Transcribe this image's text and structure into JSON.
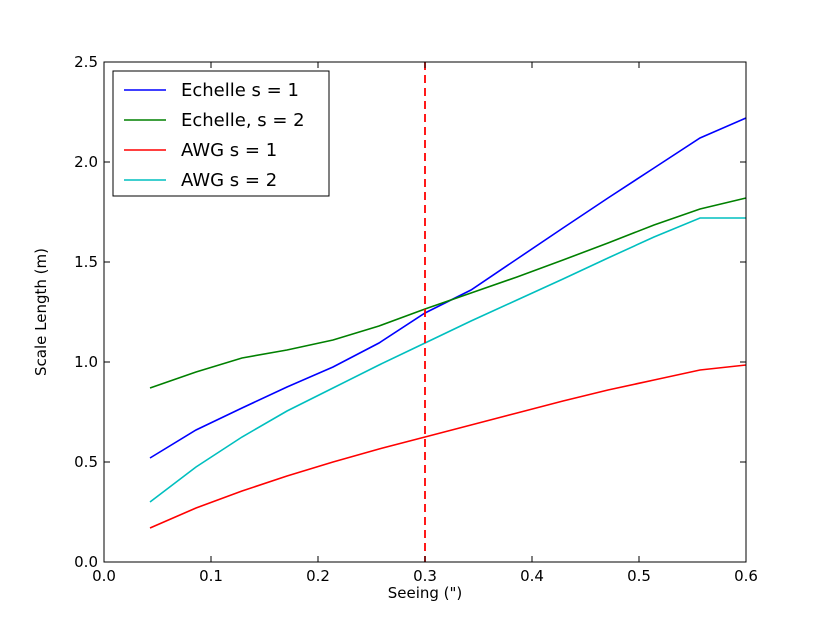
{
  "chart_data": {
    "type": "line",
    "xlabel": "Seeing (\")",
    "ylabel": "Scale Length (m)",
    "xlim": [
      0.0,
      0.6
    ],
    "ylim": [
      0.0,
      2.5
    ],
    "xticks": [
      "0.0",
      "0.1",
      "0.2",
      "0.3",
      "0.4",
      "0.5",
      "0.6"
    ],
    "yticks": [
      "0.0",
      "0.5",
      "1.0",
      "1.5",
      "2.0",
      "2.5"
    ],
    "grid": false,
    "legend_position": "top-left",
    "reference_line": {
      "x": 0.3,
      "color": "#ff0000",
      "style": "dashed"
    },
    "series": [
      {
        "name": "Echelle s = 1",
        "color": "#0000ff",
        "x": [
          0.043,
          0.086,
          0.129,
          0.171,
          0.214,
          0.257,
          0.3,
          0.343,
          0.386,
          0.429,
          0.471,
          0.514,
          0.557,
          0.6
        ],
        "y": [
          0.52,
          0.66,
          0.77,
          0.875,
          0.975,
          1.095,
          1.245,
          1.36,
          1.515,
          1.67,
          1.82,
          1.97,
          2.12,
          2.22
        ]
      },
      {
        "name": "Echelle, s = 2",
        "color": "#008000",
        "x": [
          0.043,
          0.086,
          0.129,
          0.171,
          0.214,
          0.257,
          0.3,
          0.343,
          0.386,
          0.429,
          0.471,
          0.514,
          0.557,
          0.6
        ],
        "y": [
          0.87,
          0.95,
          1.02,
          1.06,
          1.11,
          1.18,
          1.265,
          1.345,
          1.425,
          1.51,
          1.595,
          1.685,
          1.765,
          1.82
        ]
      },
      {
        "name": "AWG s = 1",
        "color": "#ff0000",
        "x": [
          0.043,
          0.086,
          0.129,
          0.171,
          0.214,
          0.257,
          0.3,
          0.343,
          0.386,
          0.429,
          0.471,
          0.514,
          0.557,
          0.6
        ],
        "y": [
          0.17,
          0.27,
          0.355,
          0.43,
          0.5,
          0.565,
          0.625,
          0.685,
          0.745,
          0.805,
          0.86,
          0.91,
          0.96,
          0.985
        ]
      },
      {
        "name": "AWG s = 2",
        "color": "#00bfbf",
        "x": [
          0.043,
          0.086,
          0.129,
          0.171,
          0.214,
          0.257,
          0.3,
          0.343,
          0.386,
          0.429,
          0.471,
          0.514,
          0.557,
          0.6
        ],
        "y": [
          0.3,
          0.475,
          0.625,
          0.755,
          0.87,
          0.985,
          1.095,
          1.205,
          1.31,
          1.415,
          1.52,
          1.625,
          1.72,
          1.72
        ]
      }
    ]
  }
}
